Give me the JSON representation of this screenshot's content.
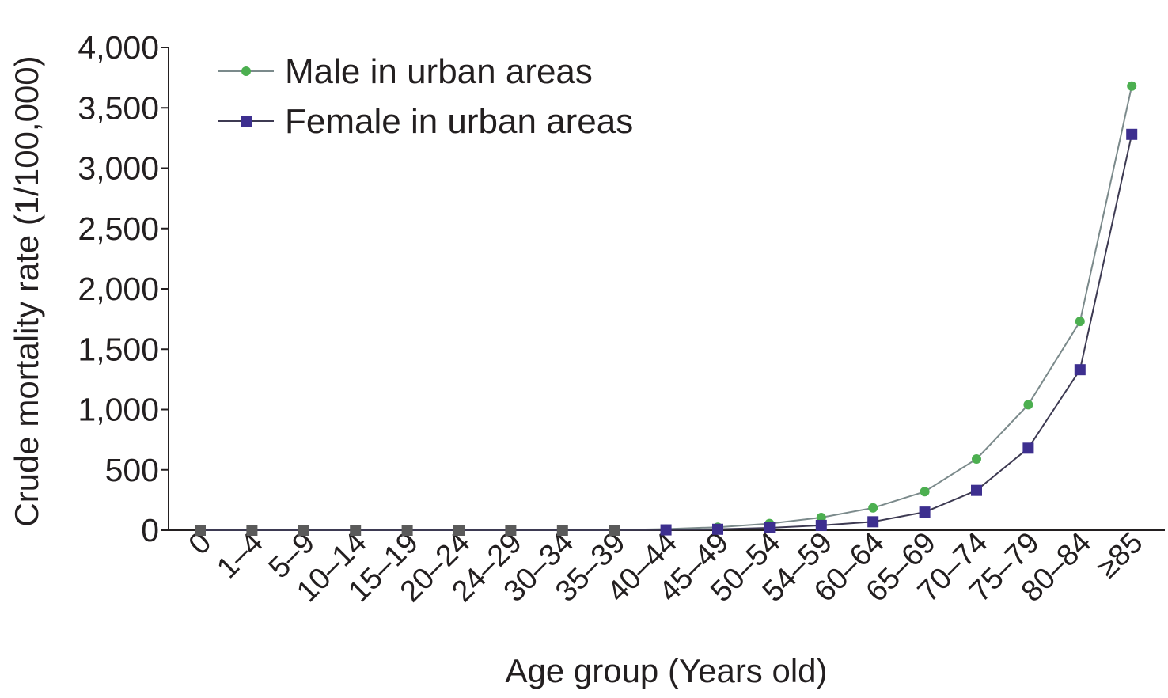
{
  "chart_data": {
    "type": "line",
    "title": "",
    "xlabel": "Age group (Years old)",
    "ylabel": "Crude mortality rate (1/100,000)",
    "ylim": [
      0,
      4000
    ],
    "yticks": [
      0,
      500,
      1000,
      1500,
      2000,
      2500,
      3000,
      3500,
      4000
    ],
    "ytick_labels": [
      "0",
      "500",
      "1,000",
      "1,500",
      "2,000",
      "2,500",
      "3,000",
      "3,500",
      "4,000"
    ],
    "categories": [
      "0",
      "1–4",
      "5–9",
      "10–14",
      "15–19",
      "20–24",
      "24–29",
      "30–34",
      "35–39",
      "40–44",
      "45–49",
      "50–54",
      "54–59",
      "60–64",
      "65–69",
      "70–74",
      "75–79",
      "80–84",
      "≥85"
    ],
    "grid": false,
    "legend_position": "top-left",
    "series": [
      {
        "name": "Male in urban areas",
        "color": "#4caf50",
        "line_color": "#7b8a8b",
        "marker": "circle",
        "values": [
          0,
          0,
          0,
          0,
          0,
          0,
          0,
          0,
          2,
          10,
          25,
          55,
          105,
          185,
          320,
          590,
          1040,
          1730,
          3680
        ]
      },
      {
        "name": "Female in urban areas",
        "color": "#3d2f8f",
        "line_color": "#3d3a52",
        "marker": "square",
        "values": [
          0,
          0,
          0,
          0,
          0,
          0,
          0,
          0,
          0,
          3,
          8,
          20,
          40,
          70,
          150,
          330,
          680,
          1330,
          3280
        ]
      }
    ]
  }
}
